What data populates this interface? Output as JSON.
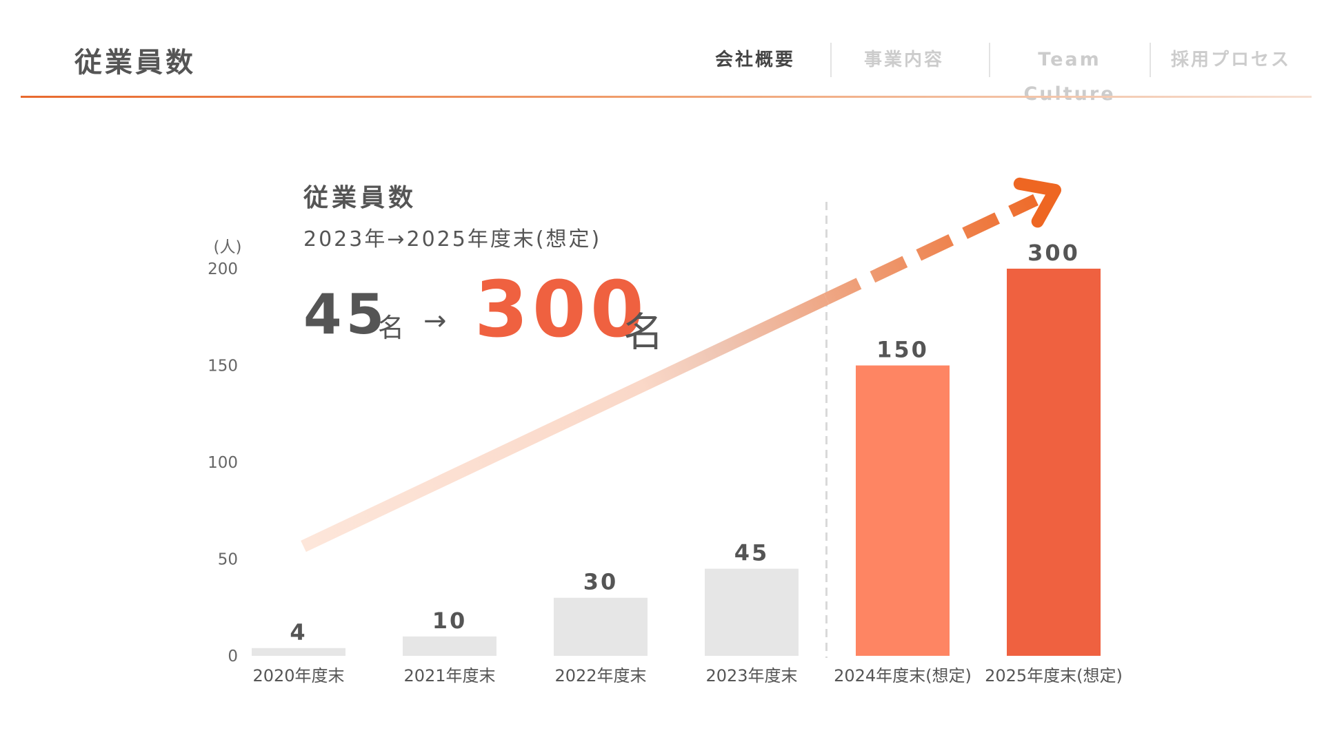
{
  "header": {
    "page_title": "従業員数",
    "nav": [
      {
        "label": "会社概要",
        "active": true
      },
      {
        "label": "事業内容",
        "active": false
      },
      {
        "label": "Team Culture",
        "active": false
      },
      {
        "label": "採用プロセス",
        "active": false
      }
    ]
  },
  "headline": {
    "subtitle": "従業員数",
    "range": "2023年→2025年度末(想定)",
    "from_value": "45",
    "from_unit": "名",
    "arrow": "→",
    "to_value": "300",
    "to_unit": "名"
  },
  "colors": {
    "accent": "#ef6140",
    "forecast_mid": "#fe8563",
    "actual_bar": "#e6e6e6",
    "text": "#555555",
    "trend_light": "#fce3d7",
    "trend_dark": "#ee6622"
  },
  "chart_data": {
    "type": "bar",
    "title": "",
    "xlabel": "",
    "ylabel": "(人)",
    "ylim": [
      0,
      200
    ],
    "yticks": [
      0,
      50,
      100,
      150,
      200
    ],
    "categories": [
      "2020年度末",
      "2021年度末",
      "2022年度末",
      "2023年度末",
      "2024年度末(想定)",
      "2025年度末(想定)"
    ],
    "values": [
      4,
      10,
      30,
      45,
      150,
      300
    ],
    "data_labels": [
      "4",
      "10",
      "30",
      "45",
      "150",
      "300"
    ],
    "value_clipped_at_axis_max": [
      false,
      false,
      false,
      false,
      false,
      true
    ],
    "forecast": [
      false,
      false,
      false,
      false,
      true,
      true
    ],
    "bar_colors": [
      "#e6e6e6",
      "#e6e6e6",
      "#e6e6e6",
      "#e6e6e6",
      "#fe8563",
      "#ef6140"
    ],
    "divider_between_categories": [
      "2023年度末",
      "2024年度末(想定)"
    ],
    "trend_arrow": true,
    "grid": false,
    "legend": "none"
  }
}
